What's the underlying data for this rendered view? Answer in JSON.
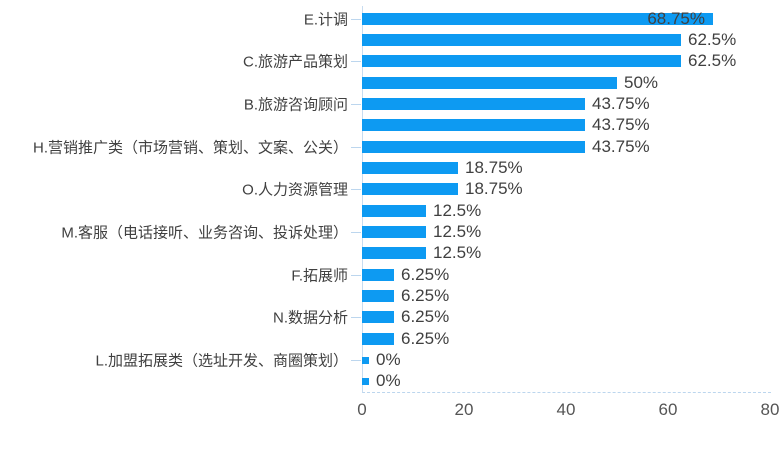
{
  "chart_data": {
    "type": "bar",
    "orientation": "horizontal",
    "title": "",
    "xlabel": "",
    "ylabel": "",
    "xlim": [
      0,
      80
    ],
    "x_ticks": [
      "0",
      "20",
      "40",
      "60",
      "80"
    ],
    "grid": false,
    "legend": false,
    "bar_color": "#0d9af2",
    "axis_line_color": "#bcd6ee",
    "label_color": "#404040",
    "rows": [
      {
        "label": "E.计调",
        "value": 68.75,
        "value_label": "68.75%",
        "value_label_inside": true
      },
      {
        "label": "",
        "value": 62.5,
        "value_label": "62.5%"
      },
      {
        "label": "C.旅游产品策划",
        "value": 62.5,
        "value_label": "62.5%"
      },
      {
        "label": "",
        "value": 50,
        "value_label": "50%"
      },
      {
        "label": "B.旅游咨询顾问",
        "value": 43.75,
        "value_label": "43.75%"
      },
      {
        "label": "",
        "value": 43.75,
        "value_label": "43.75%"
      },
      {
        "label": "H.营销推广类（市场营销、策划、文案、公关）",
        "value": 43.75,
        "value_label": "43.75%"
      },
      {
        "label": "",
        "value": 18.75,
        "value_label": "18.75%"
      },
      {
        "label": "O.人力资源管理",
        "value": 18.75,
        "value_label": "18.75%"
      },
      {
        "label": "",
        "value": 12.5,
        "value_label": "12.5%"
      },
      {
        "label": "M.客服（电话接听、业务咨询、投诉处理）",
        "value": 12.5,
        "value_label": "12.5%"
      },
      {
        "label": "",
        "value": 12.5,
        "value_label": "12.5%"
      },
      {
        "label": "F.拓展师",
        "value": 6.25,
        "value_label": "6.25%"
      },
      {
        "label": "",
        "value": 6.25,
        "value_label": "6.25%"
      },
      {
        "label": "N.数据分析",
        "value": 6.25,
        "value_label": "6.25%"
      },
      {
        "label": "",
        "value": 6.25,
        "value_label": "6.25%"
      },
      {
        "label": "L.加盟拓展类（选址开发、商圈策划）",
        "value": 0,
        "value_label": "0%"
      },
      {
        "label": "",
        "value": 0,
        "value_label": "0%"
      }
    ]
  }
}
